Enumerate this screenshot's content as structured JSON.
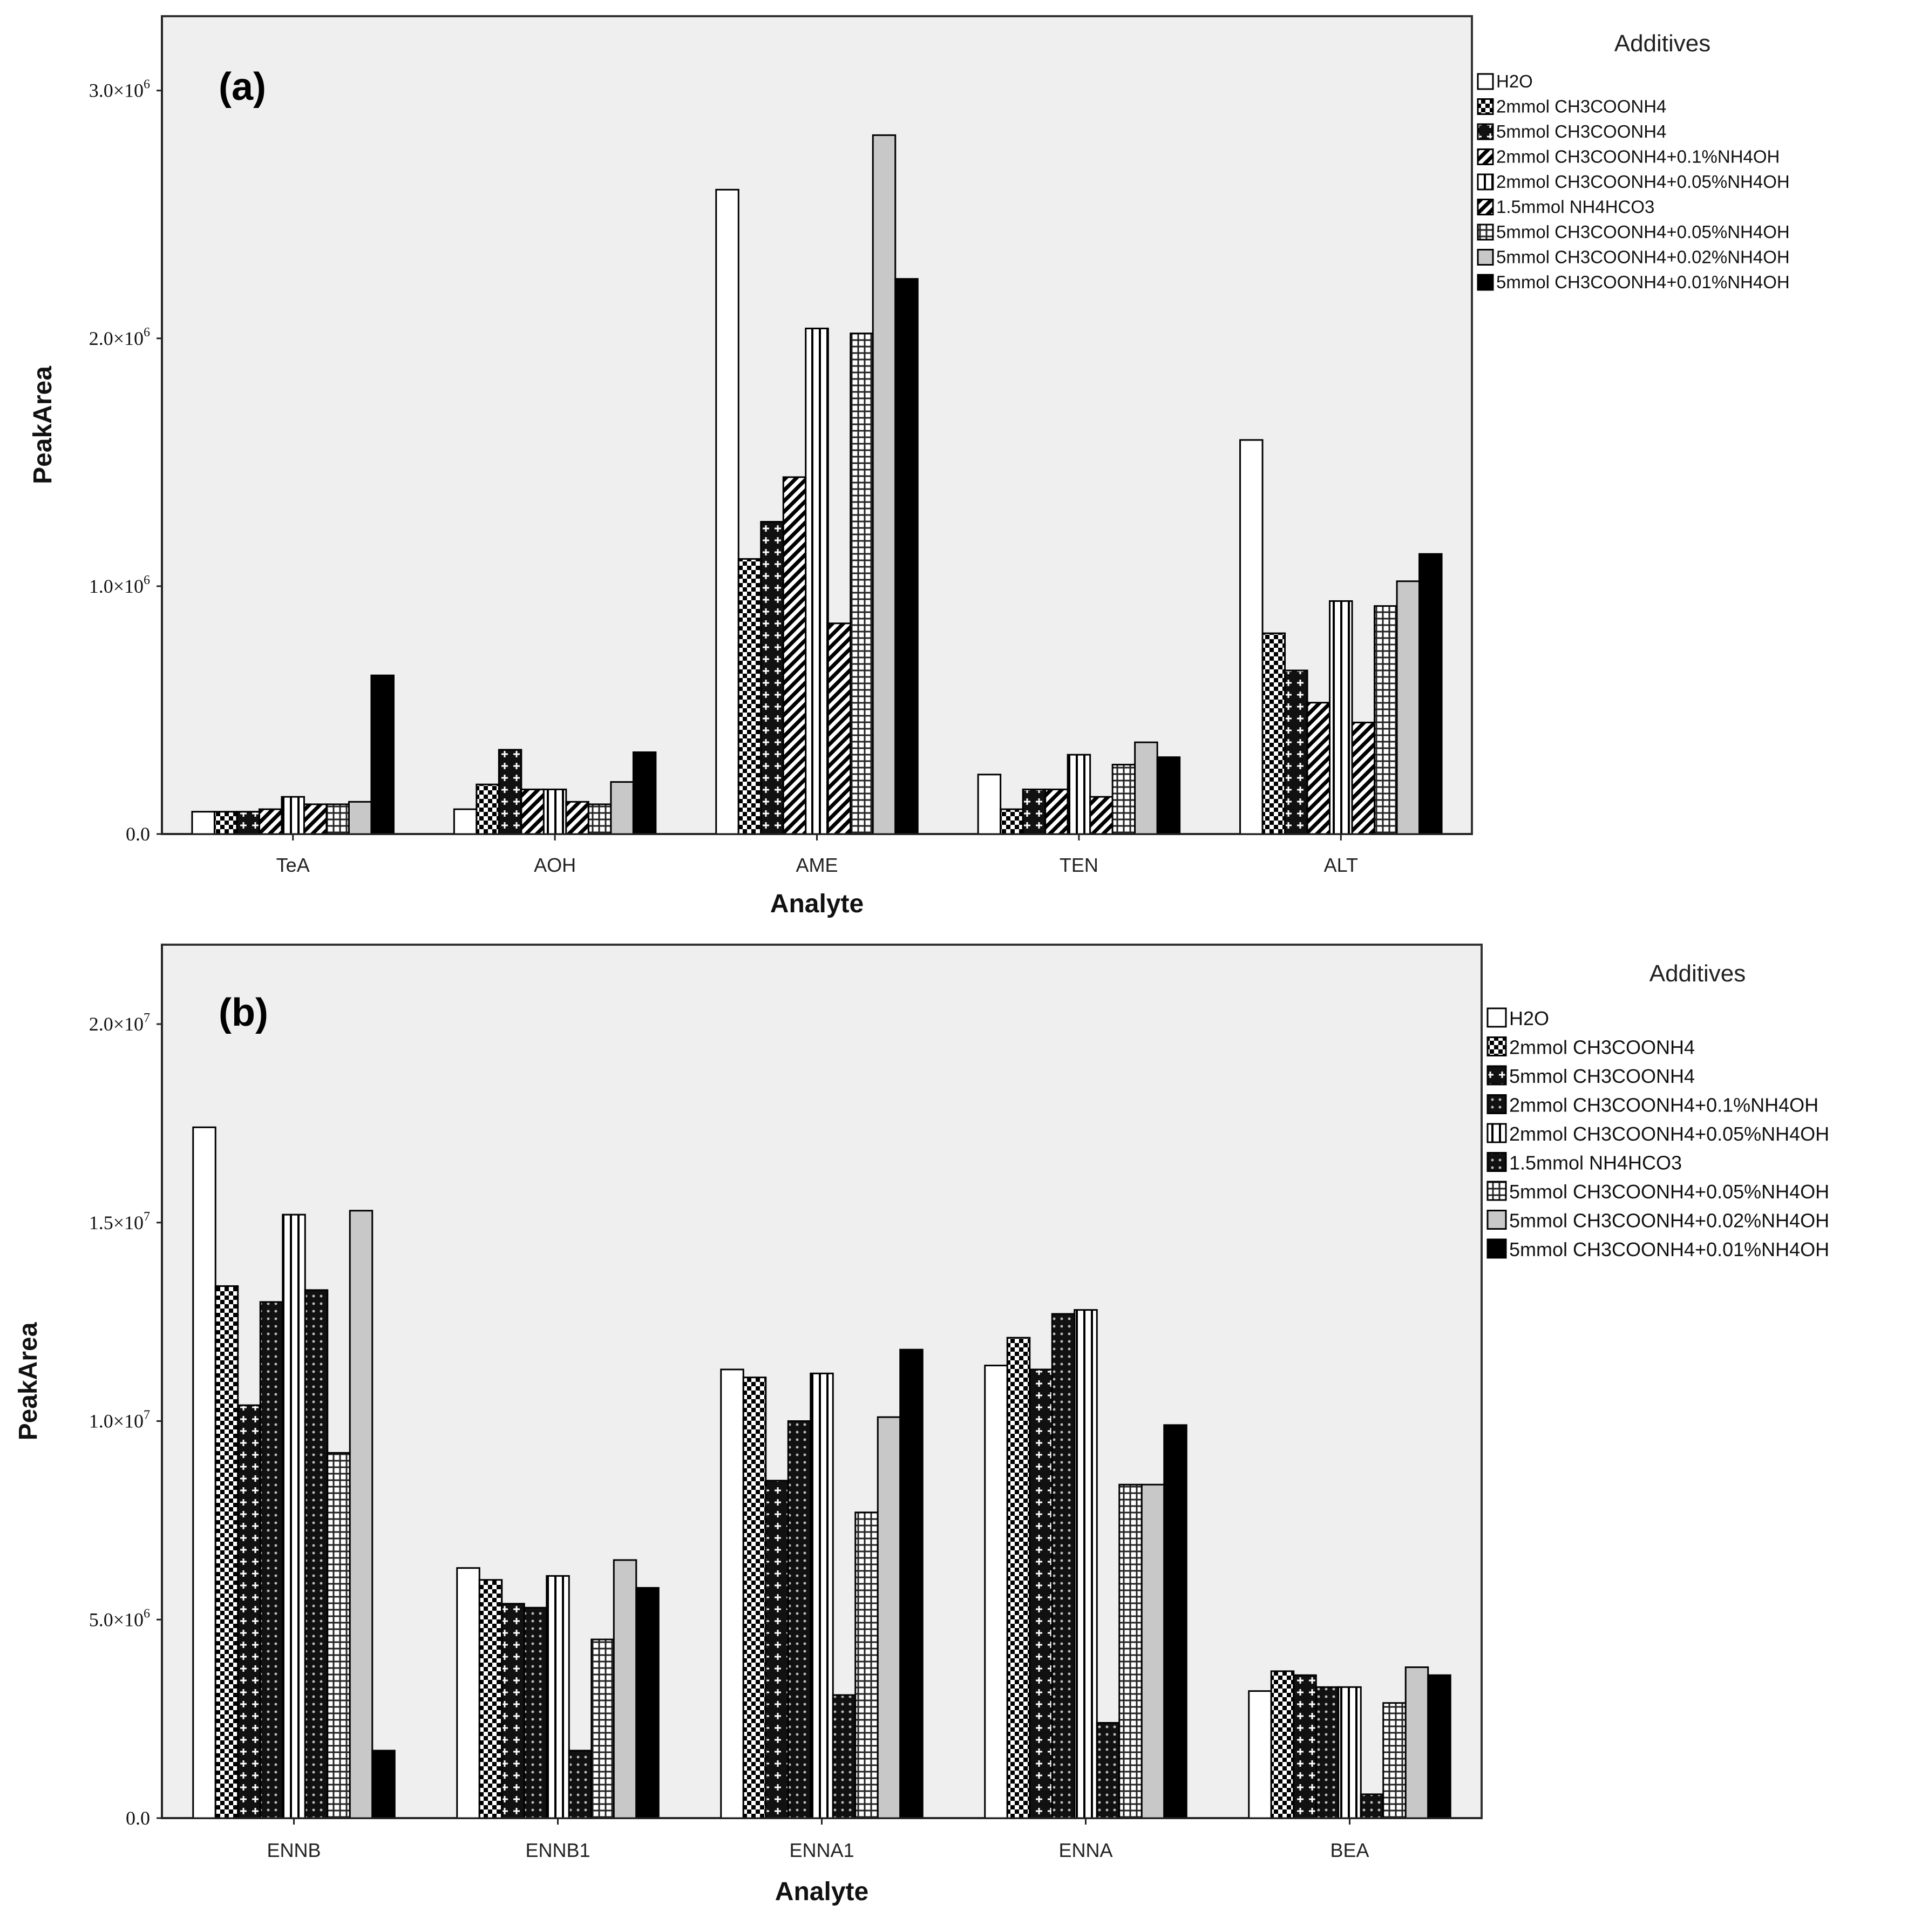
{
  "chart_data": [
    {
      "type": "bar",
      "panel_label": "(a)",
      "xlabel": "Analyte",
      "ylabel": "PeakArea",
      "ylim": [
        0,
        3300000
      ],
      "yticks": [
        {
          "value": 0,
          "mantissa": "0.0",
          "exponent": ""
        },
        {
          "value": 1000000,
          "mantissa": "1.0",
          "exponent": "6"
        },
        {
          "value": 2000000,
          "mantissa": "2.0",
          "exponent": "6"
        },
        {
          "value": 3000000,
          "mantissa": "3.0",
          "exponent": "6"
        }
      ],
      "tick_times": "×10",
      "categories": [
        "TeA",
        "AOH",
        "AME",
        "TEN",
        "ALT"
      ],
      "legend_title": "Additives",
      "legend_placement": "right",
      "series": [
        {
          "name": "H2O",
          "pattern": "white",
          "values": [
            90000,
            100000,
            2600000,
            240000,
            1590000
          ]
        },
        {
          "name": "2mmol CH3COONH4",
          "pattern": "checker",
          "values": [
            90000,
            200000,
            1110000,
            100000,
            810000
          ]
        },
        {
          "name": "5mmol CH3COONH4",
          "pattern": "darkcross",
          "values": [
            90000,
            340000,
            1260000,
            180000,
            660000
          ]
        },
        {
          "name": "2mmol CH3COONH4+0.1%NH4OH",
          "pattern": "diagonal",
          "values": [
            100000,
            180000,
            1440000,
            180000,
            530000
          ]
        },
        {
          "name": "2mmol CH3COONH4+0.05%NH4OH",
          "pattern": "vstripe",
          "values": [
            150000,
            180000,
            2040000,
            320000,
            940000
          ]
        },
        {
          "name": "1.5mmol NH4HCO3",
          "pattern": "diagonal",
          "values": [
            120000,
            130000,
            850000,
            150000,
            450000
          ]
        },
        {
          "name": "5mmol CH3COONH4+0.05%NH4OH",
          "pattern": "grid",
          "values": [
            120000,
            120000,
            2020000,
            280000,
            920000
          ]
        },
        {
          "name": "5mmol CH3COONH4+0.02%NH4OH",
          "pattern": "gray",
          "values": [
            130000,
            210000,
            2820000,
            370000,
            1020000
          ]
        },
        {
          "name": "5mmol CH3COONH4+0.01%NH4OH",
          "pattern": "black",
          "values": [
            640000,
            330000,
            2240000,
            310000,
            1130000
          ]
        }
      ]
    },
    {
      "type": "bar",
      "panel_label": "(b)",
      "xlabel": "Analyte",
      "ylabel": "PeakArea",
      "ylim": [
        0,
        22000000
      ],
      "yticks": [
        {
          "value": 0,
          "mantissa": "0.0",
          "exponent": ""
        },
        {
          "value": 5000000,
          "mantissa": "5.0",
          "exponent": "6"
        },
        {
          "value": 10000000,
          "mantissa": "1.0",
          "exponent": "7"
        },
        {
          "value": 15000000,
          "mantissa": "1.5",
          "exponent": "7"
        },
        {
          "value": 20000000,
          "mantissa": "2.0",
          "exponent": "7"
        }
      ],
      "tick_times": "×10",
      "categories": [
        "ENNB",
        "ENNB1",
        "ENNA1",
        "ENNA",
        "BEA"
      ],
      "legend_title": "Additives",
      "legend_placement": "right",
      "series": [
        {
          "name": "H2O",
          "pattern": "white",
          "values": [
            17400000,
            6300000,
            11300000,
            11400000,
            3200000
          ]
        },
        {
          "name": "2mmol CH3COONH4",
          "pattern": "checker",
          "values": [
            13400000,
            6000000,
            11100000,
            12100000,
            3700000
          ]
        },
        {
          "name": "5mmol CH3COONH4",
          "pattern": "darkcross",
          "values": [
            10400000,
            5400000,
            8500000,
            11300000,
            3600000
          ]
        },
        {
          "name": "2mmol CH3COONH4+0.1%NH4OH",
          "pattern": "darkgrid",
          "values": [
            13000000,
            5300000,
            10000000,
            12700000,
            3300000
          ]
        },
        {
          "name": "2mmol CH3COONH4+0.05%NH4OH",
          "pattern": "vstripe",
          "values": [
            15200000,
            6100000,
            11200000,
            12800000,
            3300000
          ]
        },
        {
          "name": "1.5mmol NH4HCO3",
          "pattern": "darkgrid",
          "values": [
            13300000,
            1700000,
            3100000,
            2400000,
            600000
          ]
        },
        {
          "name": "5mmol CH3COONH4+0.05%NH4OH",
          "pattern": "grid",
          "values": [
            9200000,
            4500000,
            7700000,
            8400000,
            2900000
          ]
        },
        {
          "name": "5mmol CH3COONH4+0.02%NH4OH",
          "pattern": "gray",
          "values": [
            15300000,
            6500000,
            10100000,
            8400000,
            3800000
          ]
        },
        {
          "name": "5mmol CH3COONH4+0.01%NH4OH",
          "pattern": "black",
          "values": [
            1700000,
            5800000,
            11800000,
            9900000,
            3600000
          ]
        }
      ]
    }
  ]
}
